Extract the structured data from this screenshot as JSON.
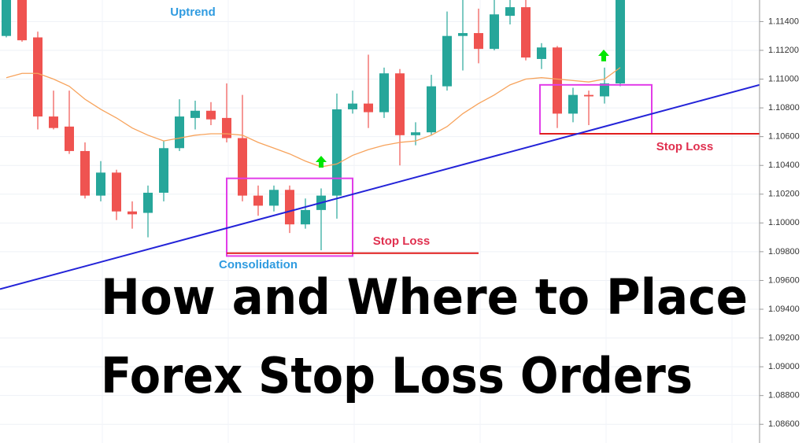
{
  "chart_data": {
    "type": "candlestick",
    "open": [
      1.113,
      1.1155,
      1.1129,
      1.1074,
      1.1067,
      1.105,
      1.1019,
      1.1035,
      1.1008,
      1.1007,
      1.1021,
      1.1052,
      1.1073,
      1.1078,
      1.1073,
      1.1059,
      1.1019,
      1.1012,
      1.1023,
      1.0999,
      1.1009,
      1.1019,
      1.1079,
      1.1083,
      1.1077,
      1.1104,
      1.1061,
      1.1063,
      1.1095,
      1.113,
      1.1132,
      1.1121,
      1.1144,
      1.115,
      1.1114,
      1.1122,
      1.1076,
      1.1089,
      1.1088,
      1.1097
    ],
    "high": [
      1.1157,
      1.1157,
      1.1133,
      1.1092,
      1.1092,
      1.1056,
      1.1043,
      1.1037,
      1.1015,
      1.1026,
      1.1057,
      1.1086,
      1.1085,
      1.1084,
      1.1097,
      1.1089,
      1.1026,
      1.1026,
      1.1026,
      1.1017,
      1.1024,
      1.109,
      1.1092,
      1.1117,
      1.1108,
      1.1107,
      1.107,
      1.1103,
      1.1147,
      1.1155,
      1.1149,
      1.1155,
      1.1155,
      1.1155,
      1.1125,
      1.1123,
      1.1094,
      1.1092,
      1.1108,
      1.1157
    ],
    "low": [
      1.1129,
      1.1126,
      1.1065,
      1.1065,
      1.1048,
      1.1017,
      1.1015,
      1.1002,
      1.0996,
      1.099,
      1.1015,
      1.105,
      1.1065,
      1.1068,
      1.1056,
      1.1015,
      1.1005,
      1.1008,
      1.0993,
      1.0996,
      1.0981,
      1.1003,
      1.1076,
      1.1066,
      1.1073,
      1.104,
      1.1054,
      1.1061,
      1.1092,
      1.1106,
      1.1111,
      1.112,
      1.1138,
      1.1113,
      1.1107,
      1.1066,
      1.107,
      1.1068,
      1.1083,
      1.1095
    ],
    "close": [
      1.1155,
      1.1127,
      1.1074,
      1.1066,
      1.105,
      1.1019,
      1.1035,
      1.1008,
      1.1006,
      1.1021,
      1.1052,
      1.1074,
      1.1078,
      1.1072,
      1.1059,
      1.1019,
      1.1012,
      1.1023,
      1.0999,
      1.1009,
      1.1019,
      1.1079,
      1.1083,
      1.1077,
      1.1104,
      1.1061,
      1.1063,
      1.1095,
      1.113,
      1.1132,
      1.1121,
      1.1145,
      1.115,
      1.1115,
      1.1122,
      1.1076,
      1.1089,
      1.1088,
      1.1097,
      1.1155
    ],
    "moving_average": [
      1.1101,
      1.1104,
      1.1104,
      1.11,
      1.1095,
      1.1086,
      1.1079,
      1.1073,
      1.1066,
      1.1061,
      1.1057,
      1.1059,
      1.1061,
      1.1062,
      1.1062,
      1.1061,
      1.1056,
      1.1052,
      1.1048,
      1.1043,
      1.1039,
      1.1041,
      1.1047,
      1.1051,
      1.1054,
      1.1056,
      1.1057,
      1.1061,
      1.1067,
      1.1076,
      1.1083,
      1.1089,
      1.1096,
      1.11,
      1.1101,
      1.11,
      1.1099,
      1.1098,
      1.11,
      1.1108
    ],
    "up_color": "#26a69a",
    "down_color": "#ef5350",
    "ma_color": "#f7a35c",
    "ylim": [
      1.0847,
      1.1155
    ],
    "yticks": [
      {
        "value": 1.086,
        "label": "1.08600"
      },
      {
        "value": 1.088,
        "label": "1.08800"
      },
      {
        "value": 1.09,
        "label": "1.09000"
      },
      {
        "value": 1.092,
        "label": "1.09200"
      },
      {
        "value": 1.094,
        "label": "1.09400"
      },
      {
        "value": 1.096,
        "label": "1.09600"
      },
      {
        "value": 1.098,
        "label": "1.09800"
      },
      {
        "value": 1.1,
        "label": "1.10000"
      },
      {
        "value": 1.102,
        "label": "1.10200"
      },
      {
        "value": 1.104,
        "label": "1.10400"
      },
      {
        "value": 1.106,
        "label": "1.10600"
      },
      {
        "value": 1.108,
        "label": "1.10800"
      },
      {
        "value": 1.11,
        "label": "1.11000"
      },
      {
        "value": 1.112,
        "label": "1.11200"
      },
      {
        "value": 1.114,
        "label": "1.11400"
      }
    ],
    "grid": true,
    "trendline": {
      "start": 1.0954,
      "end": 1.1096,
      "color": "#2323d8"
    },
    "boxes": [
      {
        "from": 14,
        "to": 22,
        "high": 1.1031,
        "low": 1.0977
      },
      {
        "from": 33.9,
        "to": 41,
        "high": 1.1096,
        "low": 1.1062
      }
    ],
    "stop_losses": [
      {
        "label": "Stop Loss",
        "price": 1.0979,
        "from": 14,
        "to": 30
      },
      {
        "label": "Stop Loss",
        "price": 1.1062,
        "from": 33.9,
        "to": 47.85
      }
    ],
    "annotations": [
      "Uptrend",
      "Consolidation"
    ],
    "title_lines": [
      "How and Where to Place",
      "Forex Stop Loss Orders"
    ]
  }
}
